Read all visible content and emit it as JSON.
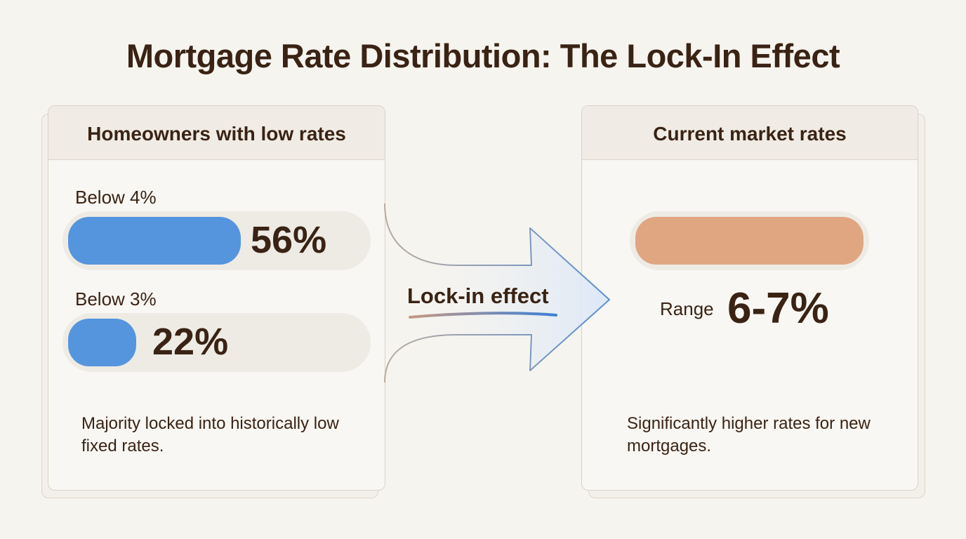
{
  "title": "Mortgage Rate Distribution: The Lock-In Effect",
  "left_card": {
    "heading": "Homeowners with low rates",
    "bars": [
      {
        "label": "Below 4%",
        "value_text": "56%",
        "value": 56
      },
      {
        "label": "Below 3%",
        "value_text": "22%",
        "value": 22
      }
    ],
    "note": "Majority locked into historically low fixed rates."
  },
  "arrow": {
    "label": "Lock-in effect"
  },
  "right_card": {
    "heading": "Current market rates",
    "range_label": "Range",
    "range_value": "6-7%",
    "note": "Significantly higher rates for new mortgages."
  },
  "colors": {
    "low_rate_bar": "#5595dd",
    "market_bar": "#e0a682",
    "text": "#3a2314",
    "arrow_stroke": "#5b8fd0"
  }
}
